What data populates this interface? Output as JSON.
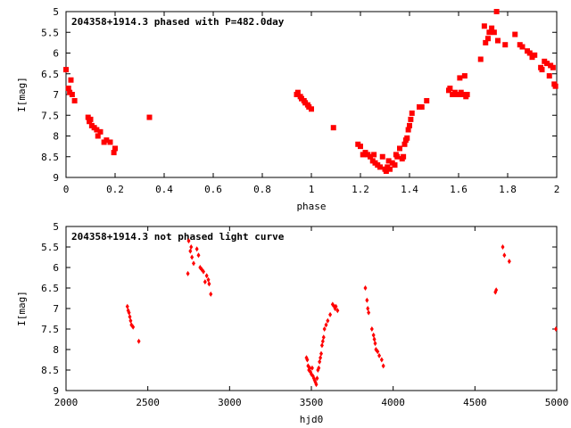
{
  "chart_data": [
    {
      "type": "scatter",
      "title": "204358+1914.3 phased with P=482.0day",
      "xlabel": "phase",
      "ylabel": "I[mag]",
      "xlim": [
        0,
        2
      ],
      "ylim": [
        5,
        9
      ],
      "y_inverted": true,
      "xticks": [
        "0",
        "0.2",
        "0.4",
        "0.6",
        "0.8",
        "1",
        "1.2",
        "1.4",
        "1.6",
        "1.8",
        "2"
      ],
      "xtick_values": [
        0,
        0.2,
        0.4,
        0.6,
        0.8,
        1.0,
        1.2,
        1.4,
        1.6,
        1.8,
        2.0
      ],
      "yticks": [
        "5",
        "5.5",
        "6",
        "6.5",
        "7",
        "7.5",
        "8",
        "8.5",
        "9"
      ],
      "ytick_values": [
        5,
        5.5,
        6,
        6.5,
        7,
        7.5,
        8,
        8.5,
        9
      ],
      "marker_color": "#ff0000",
      "marker": "square",
      "points": [
        [
          0.0,
          6.4
        ],
        [
          0.01,
          6.85
        ],
        [
          0.015,
          6.95
        ],
        [
          0.02,
          6.65
        ],
        [
          0.025,
          7.0
        ],
        [
          0.035,
          7.15
        ],
        [
          0.09,
          7.55
        ],
        [
          0.095,
          7.65
        ],
        [
          0.1,
          7.6
        ],
        [
          0.105,
          7.75
        ],
        [
          0.115,
          7.8
        ],
        [
          0.125,
          7.85
        ],
        [
          0.13,
          8.0
        ],
        [
          0.14,
          7.9
        ],
        [
          0.155,
          8.15
        ],
        [
          0.165,
          8.1
        ],
        [
          0.18,
          8.15
        ],
        [
          0.195,
          8.4
        ],
        [
          0.2,
          8.3
        ],
        [
          0.34,
          7.55
        ],
        [
          0.94,
          7.0
        ],
        [
          0.945,
          6.95
        ],
        [
          0.955,
          7.05
        ],
        [
          0.96,
          7.1
        ],
        [
          0.97,
          7.15
        ],
        [
          0.975,
          7.2
        ],
        [
          0.985,
          7.25
        ],
        [
          0.99,
          7.3
        ],
        [
          1.0,
          7.35
        ],
        [
          1.09,
          7.8
        ],
        [
          1.19,
          8.2
        ],
        [
          1.2,
          8.25
        ],
        [
          1.21,
          8.45
        ],
        [
          1.22,
          8.4
        ],
        [
          1.23,
          8.45
        ],
        [
          1.24,
          8.5
        ],
        [
          1.25,
          8.6
        ],
        [
          1.255,
          8.45
        ],
        [
          1.26,
          8.65
        ],
        [
          1.27,
          8.7
        ],
        [
          1.28,
          8.75
        ],
        [
          1.29,
          8.5
        ],
        [
          1.3,
          8.8
        ],
        [
          1.305,
          8.85
        ],
        [
          1.31,
          8.75
        ],
        [
          1.315,
          8.6
        ],
        [
          1.32,
          8.8
        ],
        [
          1.33,
          8.65
        ],
        [
          1.34,
          8.7
        ],
        [
          1.345,
          8.45
        ],
        [
          1.35,
          8.5
        ],
        [
          1.36,
          8.3
        ],
        [
          1.37,
          8.55
        ],
        [
          1.375,
          8.5
        ],
        [
          1.38,
          8.2
        ],
        [
          1.385,
          8.1
        ],
        [
          1.39,
          8.05
        ],
        [
          1.395,
          7.85
        ],
        [
          1.4,
          7.75
        ],
        [
          1.405,
          7.6
        ],
        [
          1.41,
          7.45
        ],
        [
          1.44,
          7.3
        ],
        [
          1.45,
          7.3
        ],
        [
          1.47,
          7.15
        ],
        [
          1.56,
          6.9
        ],
        [
          1.565,
          6.85
        ],
        [
          1.575,
          7.0
        ],
        [
          1.585,
          6.95
        ],
        [
          1.595,
          7.0
        ],
        [
          1.6,
          7.0
        ],
        [
          1.605,
          6.6
        ],
        [
          1.61,
          6.95
        ],
        [
          1.615,
          7.0
        ],
        [
          1.625,
          6.55
        ],
        [
          1.63,
          7.05
        ],
        [
          1.635,
          7.0
        ],
        [
          1.69,
          6.15
        ],
        [
          1.705,
          5.35
        ],
        [
          1.71,
          5.75
        ],
        [
          1.72,
          5.65
        ],
        [
          1.725,
          5.5
        ],
        [
          1.735,
          5.4
        ],
        [
          1.745,
          5.5
        ],
        [
          1.755,
          5.0
        ],
        [
          1.76,
          5.7
        ],
        [
          1.79,
          5.8
        ],
        [
          1.83,
          5.55
        ],
        [
          1.85,
          5.8
        ],
        [
          1.86,
          5.85
        ],
        [
          1.88,
          5.95
        ],
        [
          1.89,
          6.0
        ],
        [
          1.9,
          6.1
        ],
        [
          1.91,
          6.05
        ],
        [
          1.935,
          6.35
        ],
        [
          1.94,
          6.4
        ],
        [
          1.95,
          6.2
        ],
        [
          1.96,
          6.25
        ],
        [
          1.97,
          6.55
        ],
        [
          1.975,
          6.3
        ],
        [
          1.985,
          6.35
        ],
        [
          1.99,
          6.75
        ],
        [
          1.995,
          6.8
        ]
      ]
    },
    {
      "type": "scatter",
      "title": "204358+1914.3 not phased light curve",
      "xlabel": "hjd0",
      "ylabel": "I[mag]",
      "xlim": [
        2000,
        5000
      ],
      "ylim": [
        5,
        9
      ],
      "y_inverted": true,
      "xticks": [
        "2000",
        "2500",
        "3000",
        "3500",
        "4000",
        "4500",
        "5000"
      ],
      "xtick_values": [
        2000,
        2500,
        3000,
        3500,
        4000,
        4500,
        5000
      ],
      "yticks": [
        "5",
        "5.5",
        "6",
        "6.5",
        "7",
        "7.5",
        "8",
        "8.5",
        "9"
      ],
      "ytick_values": [
        5,
        5.5,
        6,
        6.5,
        7,
        7.5,
        8,
        8.5,
        9
      ],
      "marker_color": "#ff0000",
      "marker": "diamond",
      "points": [
        [
          2375,
          6.95
        ],
        [
          2380,
          7.05
        ],
        [
          2385,
          7.1
        ],
        [
          2390,
          7.2
        ],
        [
          2395,
          7.3
        ],
        [
          2400,
          7.4
        ],
        [
          2410,
          7.45
        ],
        [
          2445,
          7.8
        ],
        [
          2745,
          6.15
        ],
        [
          2750,
          5.35
        ],
        [
          2760,
          5.6
        ],
        [
          2765,
          5.5
        ],
        [
          2770,
          5.75
        ],
        [
          2780,
          5.9
        ],
        [
          2800,
          5.55
        ],
        [
          2810,
          5.7
        ],
        [
          2820,
          6.0
        ],
        [
          2830,
          6.05
        ],
        [
          2840,
          6.1
        ],
        [
          2850,
          6.35
        ],
        [
          2860,
          6.2
        ],
        [
          2870,
          6.3
        ],
        [
          2875,
          6.4
        ],
        [
          2885,
          6.65
        ],
        [
          3470,
          8.2
        ],
        [
          3475,
          8.25
        ],
        [
          3480,
          8.4
        ],
        [
          3485,
          8.5
        ],
        [
          3490,
          8.45
        ],
        [
          3495,
          8.55
        ],
        [
          3500,
          8.6
        ],
        [
          3505,
          8.45
        ],
        [
          3510,
          8.65
        ],
        [
          3515,
          8.7
        ],
        [
          3520,
          8.75
        ],
        [
          3525,
          8.8
        ],
        [
          3530,
          8.85
        ],
        [
          3535,
          8.7
        ],
        [
          3540,
          8.5
        ],
        [
          3545,
          8.45
        ],
        [
          3550,
          8.3
        ],
        [
          3555,
          8.2
        ],
        [
          3560,
          8.1
        ],
        [
          3565,
          7.9
        ],
        [
          3570,
          7.8
        ],
        [
          3575,
          7.7
        ],
        [
          3580,
          7.5
        ],
        [
          3590,
          7.4
        ],
        [
          3600,
          7.3
        ],
        [
          3615,
          7.15
        ],
        [
          3630,
          6.9
        ],
        [
          3640,
          6.95
        ],
        [
          3645,
          7.0
        ],
        [
          3650,
          6.95
        ],
        [
          3660,
          7.05
        ],
        [
          3830,
          6.5
        ],
        [
          3840,
          6.8
        ],
        [
          3845,
          7.0
        ],
        [
          3850,
          7.1
        ],
        [
          3870,
          7.5
        ],
        [
          3880,
          7.65
        ],
        [
          3885,
          7.75
        ],
        [
          3890,
          7.85
        ],
        [
          3895,
          8.0
        ],
        [
          3905,
          8.05
        ],
        [
          3915,
          8.15
        ],
        [
          3930,
          8.25
        ],
        [
          3940,
          8.4
        ],
        [
          4625,
          6.6
        ],
        [
          4630,
          6.55
        ],
        [
          4670,
          5.5
        ],
        [
          4680,
          5.7
        ],
        [
          4710,
          5.85
        ],
        [
          4995,
          7.5
        ]
      ]
    }
  ]
}
